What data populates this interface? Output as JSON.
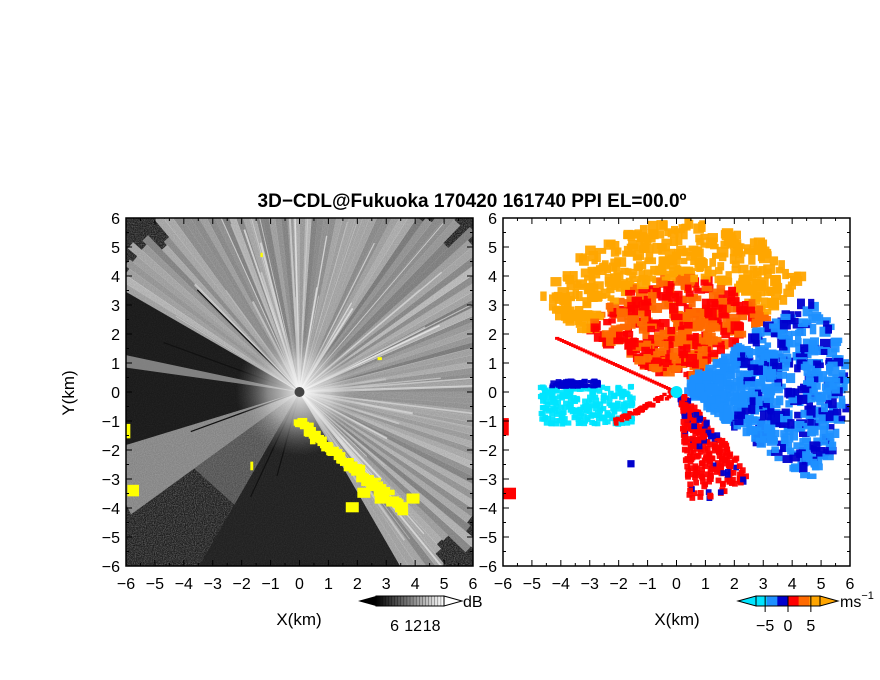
{
  "title": "3D−CDL@Fukuoka 170420 161740 PPI EL=00.0º",
  "chart_data": [
    {
      "type": "heatmap",
      "panel": "left",
      "quantity": "reflectivity",
      "xlabel": "X(km)",
      "ylabel": "Y(km)",
      "xlim": [
        -6,
        6
      ],
      "ylim": [
        -6,
        6
      ],
      "xticks": [
        "−6",
        "−5",
        "−4",
        "−3",
        "−2",
        "−1",
        "0",
        "1",
        "2",
        "3",
        "4",
        "5",
        "6"
      ],
      "yticks": [
        "6",
        "5",
        "4",
        "3",
        "2",
        "1",
        "0",
        "−1",
        "−2",
        "−3",
        "−4",
        "−5",
        "−6"
      ],
      "colorbar": {
        "unit": "dB",
        "tick_labels": [
          "6",
          "12",
          "18"
        ],
        "ticks": [
          6,
          12,
          18
        ],
        "range": [
          0,
          22
        ],
        "colors": [
          "#000000",
          "#ffffff"
        ],
        "flag_color": "#ffff00"
      }
    },
    {
      "type": "heatmap",
      "panel": "right",
      "quantity": "radial velocity",
      "xlabel": "X(km)",
      "ylabel": "",
      "xlim": [
        -6,
        6
      ],
      "ylim": [
        -6,
        6
      ],
      "xticks": [
        "−6",
        "−5",
        "−4",
        "−3",
        "−2",
        "−1",
        "0",
        "1",
        "2",
        "3",
        "4",
        "5",
        "6"
      ],
      "yticks": [
        "6",
        "5",
        "4",
        "3",
        "2",
        "1",
        "0",
        "−1",
        "−2",
        "−3",
        "−4",
        "−5",
        "−6"
      ],
      "colorbar": {
        "unit": "ms",
        "unit_exponent": "−1",
        "tick_labels": [
          "−5",
          "0",
          "5"
        ],
        "ticks": [
          -5,
          0,
          5
        ],
        "range": [
          -7,
          7
        ],
        "colors": [
          "#00e5ff",
          "#1e90ff",
          "#0000cd",
          "#ff0000",
          "#ff6a00",
          "#ffa500"
        ]
      },
      "radar_marker_color": "#00e5ff"
    }
  ]
}
